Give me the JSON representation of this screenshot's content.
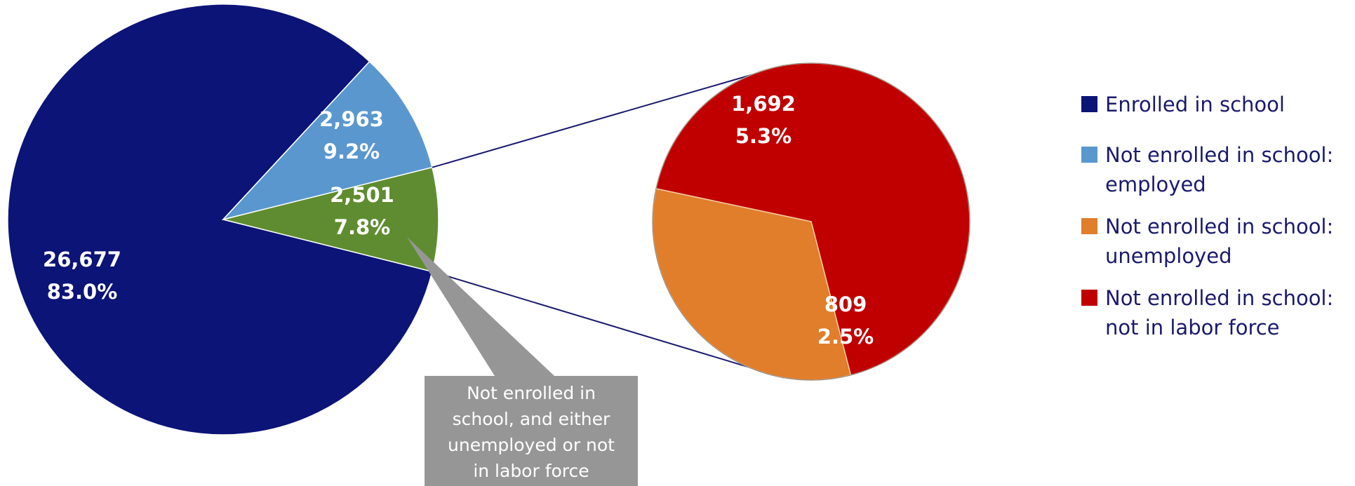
{
  "chart_data": {
    "type": "pie",
    "title": "",
    "main_pie": {
      "slices": [
        {
          "key": "enrolled",
          "value": 26677,
          "value_label": "26,677",
          "percent_label": "83.0%",
          "color": "#0c1477"
        },
        {
          "key": "employed",
          "value": 2963,
          "value_label": "2,963",
          "percent_label": "9.2%",
          "color": "#5a97cf"
        },
        {
          "key": "combined",
          "value": 2501,
          "value_label": "2,501",
          "percent_label": "7.8%",
          "color": "#5f8c30"
        }
      ]
    },
    "detail_pie": {
      "slices": [
        {
          "key": "not_in_labor_force",
          "value": 1692,
          "value_label": "1,692",
          "percent_label": "5.3%",
          "color": "#c00000"
        },
        {
          "key": "unemployed",
          "value": 809,
          "value_label": "809",
          "percent_label": "2.5%",
          "color": "#e07e2c"
        }
      ]
    },
    "callout": {
      "lines": [
        "Not enrolled in",
        "school, and either",
        "unemployed or not",
        "in labor force"
      ],
      "color": "#969696"
    },
    "legend": [
      {
        "label_lines": [
          "Enrolled in school"
        ],
        "color": "#0c1477"
      },
      {
        "label_lines": [
          "Not enrolled in school:",
          "employed"
        ],
        "color": "#5a97cf"
      },
      {
        "label_lines": [
          "Not enrolled in school:",
          "unemployed"
        ],
        "color": "#e07e2c"
      },
      {
        "label_lines": [
          "Not enrolled in school:",
          "not in labor force"
        ],
        "color": "#c00000"
      }
    ],
    "connector_color": "#1a1a6e",
    "legend_placement": "right"
  }
}
